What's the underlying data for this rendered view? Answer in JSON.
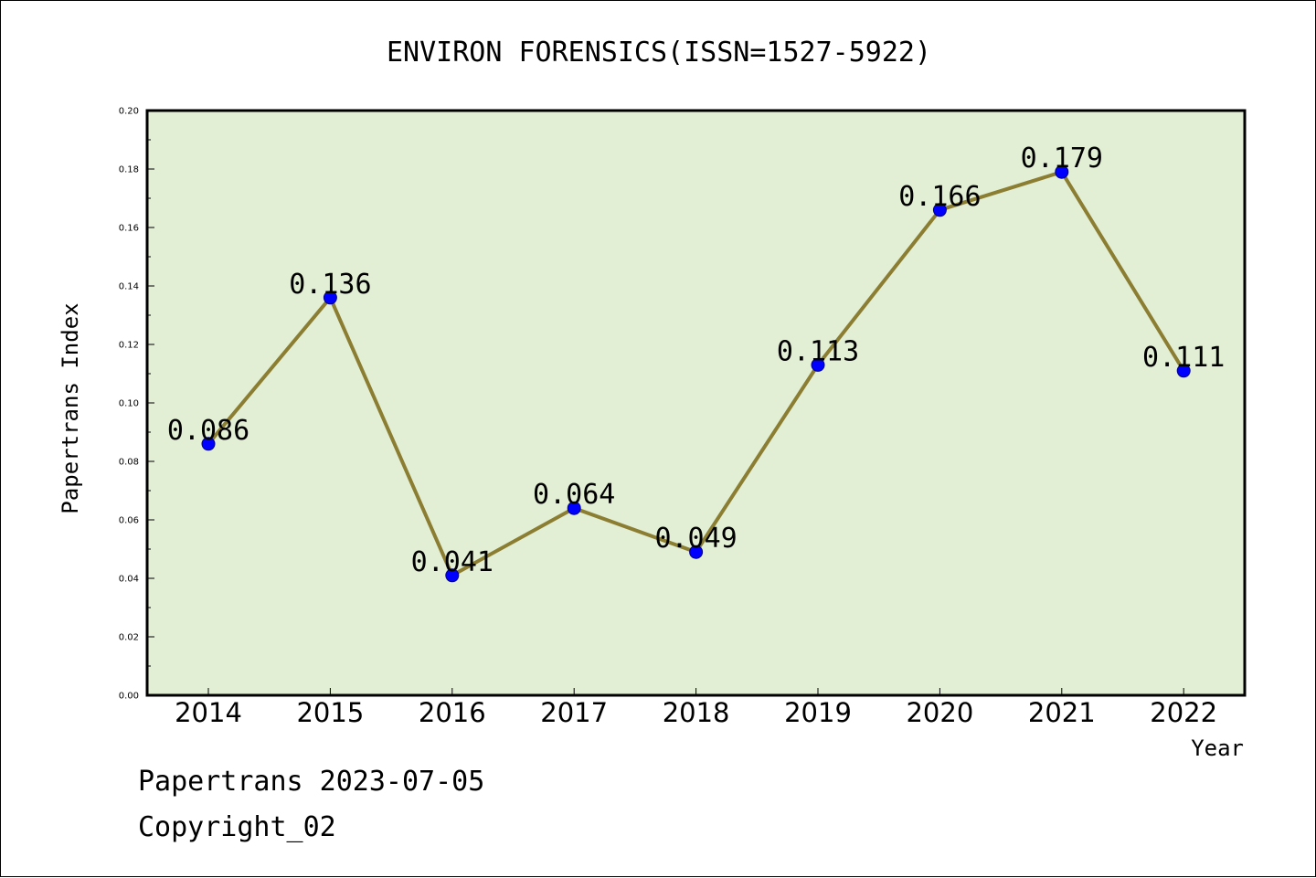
{
  "chart_data": {
    "type": "line",
    "title": "ENVIRON FORENSICS(ISSN=1527-5922)",
    "xlabel": "Year",
    "ylabel": "Papertrans Index",
    "categories": [
      "2014",
      "2015",
      "2016",
      "2017",
      "2018",
      "2019",
      "2020",
      "2021",
      "2022"
    ],
    "values": [
      0.086,
      0.136,
      0.041,
      0.064,
      0.049,
      0.113,
      0.166,
      0.179,
      0.111
    ],
    "data_labels": [
      "0.086",
      "0.136",
      "0.041",
      "0.064",
      "0.049",
      "0.113",
      "0.166",
      "0.179",
      "0.111"
    ],
    "ylim": [
      0.0,
      0.2
    ],
    "yticks": [
      "0.00",
      "0.02",
      "0.04",
      "0.06",
      "0.08",
      "0.10",
      "0.12",
      "0.14",
      "0.16",
      "0.18",
      "0.20"
    ],
    "grid": false,
    "colors": {
      "plot_background": "#e2efd4",
      "line": "#8b7d32",
      "marker_fill": "#0000ff",
      "marker_edge": "#00008b"
    }
  },
  "footer": {
    "line1": "Papertrans 2023-07-05",
    "line2": "Copyright_02"
  }
}
